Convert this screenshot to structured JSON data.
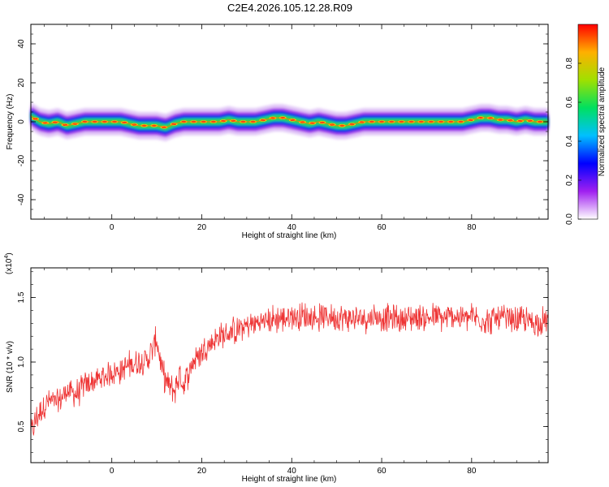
{
  "title": "C2E4.2026.105.12.28.R09",
  "chart_data": [
    {
      "type": "heatmap",
      "xlabel": "Height of straight line (km)",
      "ylabel": "Frequency (Hz)",
      "xlim": [
        -18,
        97
      ],
      "ylim": [
        -50,
        50
      ],
      "xticks": [
        0,
        20,
        40,
        60,
        80
      ],
      "yticks": [
        -40,
        -20,
        0,
        20,
        40
      ],
      "xtick_labels": [
        "0",
        "20",
        "40",
        "60",
        "80"
      ],
      "ytick_labels": [
        "-40",
        "-20",
        "0",
        "20",
        "40"
      ],
      "colorbar": {
        "label": "Normalized spectral amplitude",
        "range": [
          0,
          1
        ],
        "ticks": [
          0.0,
          0.2,
          0.4,
          0.6,
          0.8
        ],
        "tick_labels": [
          "0.0",
          "0.2",
          "0.4",
          "0.6",
          "0.8"
        ],
        "colors": [
          "#ffffff",
          "#a020f0",
          "#0000ff",
          "#00c0ff",
          "#00e060",
          "#a0e000",
          "#ffb000",
          "#ff0000"
        ]
      },
      "ridge": {
        "x": [
          -18,
          -16,
          -14,
          -12,
          -10,
          -8,
          -6,
          -4,
          -2,
          0,
          2,
          4,
          6,
          8,
          10,
          12,
          14,
          16,
          18,
          20,
          22,
          24,
          26,
          28,
          30,
          32,
          34,
          36,
          38,
          40,
          42,
          44,
          46,
          48,
          50,
          52,
          54,
          56,
          58,
          60,
          62,
          64,
          66,
          68,
          70,
          72,
          74,
          76,
          78,
          80,
          82,
          84,
          86,
          88,
          90,
          92,
          94,
          96
        ],
        "freq": [
          3,
          0,
          -1,
          0,
          -2,
          -1,
          0,
          0,
          0,
          0,
          0,
          -1,
          -2,
          -2,
          -2,
          -3,
          -1,
          0,
          0,
          0,
          0,
          0,
          1,
          0,
          0,
          0,
          1,
          2,
          2,
          1,
          0,
          -1,
          0,
          -1,
          -2,
          -2,
          -1,
          0,
          0,
          0,
          0,
          0,
          0,
          0,
          0,
          0,
          0,
          0,
          0,
          1,
          2,
          2,
          1,
          1,
          0,
          1,
          0,
          0
        ]
      }
    },
    {
      "type": "line",
      "xlabel": "Height of straight line (km)",
      "ylabel": "SNR (10 * v/v)",
      "y_multiplier": "(x10",
      "y_multiplier_exp": "4",
      "y_multiplier_close": ")",
      "xlim": [
        -18,
        97
      ],
      "ylim": [
        0.22,
        1.73
      ],
      "xticks": [
        0,
        20,
        40,
        60,
        80
      ],
      "yticks": [
        0.5,
        1.0,
        1.5
      ],
      "xtick_labels": [
        "0",
        "20",
        "40",
        "60",
        "80"
      ],
      "ytick_labels": [
        "0.5",
        "1.0",
        "1.5"
      ],
      "color": "#ee3333",
      "series": [
        {
          "x": [
            -18,
            -16,
            -14,
            -12,
            -10,
            -8,
            -6,
            -4,
            -2,
            0,
            2,
            4,
            6,
            8,
            9,
            10,
            11,
            12,
            13,
            14,
            15,
            16,
            18,
            20,
            22,
            24,
            26,
            28,
            30,
            32,
            34,
            36,
            38,
            40,
            42,
            44,
            46,
            48,
            50,
            52,
            54,
            56,
            58,
            60,
            62,
            64,
            66,
            68,
            70,
            72,
            74,
            76,
            78,
            80,
            82,
            84,
            86,
            88,
            90,
            92,
            94,
            96
          ],
          "y": [
            0.45,
            0.62,
            0.7,
            0.68,
            0.78,
            0.75,
            0.82,
            0.85,
            0.88,
            0.92,
            0.93,
            0.98,
            1.0,
            1.02,
            1.1,
            1.18,
            0.95,
            0.85,
            0.8,
            0.78,
            0.9,
            0.82,
            1.0,
            1.08,
            1.15,
            1.2,
            1.22,
            1.25,
            1.28,
            1.3,
            1.32,
            1.33,
            1.34,
            1.35,
            1.36,
            1.35,
            1.34,
            1.36,
            1.35,
            1.34,
            1.33,
            1.34,
            1.35,
            1.35,
            1.34,
            1.33,
            1.34,
            1.35,
            1.34,
            1.35,
            1.33,
            1.36,
            1.34,
            1.35,
            1.33,
            1.32,
            1.34,
            1.33,
            1.32,
            1.33,
            1.3,
            1.32
          ]
        }
      ]
    }
  ]
}
